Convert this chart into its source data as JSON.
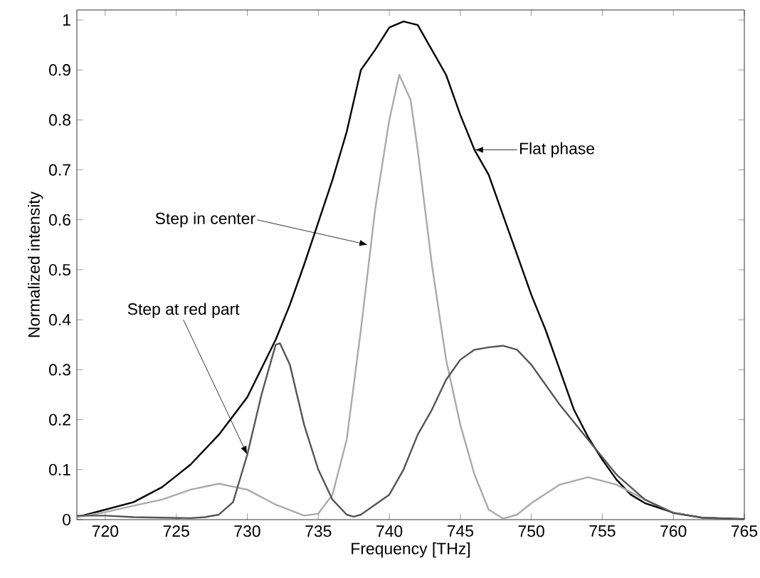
{
  "chart_data": {
    "type": "line",
    "xlabel": "Frequency [THz]",
    "ylabel": "Normalized intensity",
    "xlim": [
      718,
      765
    ],
    "ylim": [
      0,
      1.02
    ],
    "xticks": [
      720,
      725,
      730,
      735,
      740,
      745,
      750,
      755,
      760,
      765
    ],
    "yticks": [
      0,
      0.1,
      0.2,
      0.3,
      0.4,
      0.5,
      0.6,
      0.7,
      0.8,
      0.9,
      1
    ],
    "grid": false,
    "marker": "none",
    "line_style": "solid",
    "series": [
      {
        "color": "#000000",
        "x": [
          718,
          720,
          722,
          724,
          726,
          728,
          730,
          732,
          733,
          734,
          735,
          736,
          737,
          738,
          739,
          740,
          741,
          742,
          743,
          744,
          745,
          746,
          747,
          748,
          749,
          750,
          751,
          752,
          753,
          754,
          755,
          756,
          757,
          758,
          760,
          762,
          765
        ],
        "values": [
          0.005,
          0.02,
          0.035,
          0.065,
          0.11,
          0.17,
          0.245,
          0.36,
          0.43,
          0.51,
          0.595,
          0.68,
          0.776,
          0.9,
          0.94,
          0.985,
          0.997,
          0.99,
          0.94,
          0.89,
          0.81,
          0.74,
          0.69,
          0.61,
          0.53,
          0.45,
          0.38,
          0.3,
          0.22,
          0.165,
          0.12,
          0.08,
          0.05,
          0.033,
          0.014,
          0.004,
          0.001
        ]
      },
      {
        "color": "#aaaaaa",
        "x": [
          718,
          720,
          722,
          724,
          726,
          728,
          730,
          732,
          734,
          735,
          736,
          737,
          738,
          739,
          740,
          740.7,
          741.5,
          742,
          743,
          744,
          745,
          746,
          747,
          748,
          749,
          750,
          752,
          754,
          756,
          758,
          760,
          762,
          765
        ],
        "values": [
          0.005,
          0.015,
          0.028,
          0.04,
          0.06,
          0.072,
          0.06,
          0.03,
          0.008,
          0.012,
          0.05,
          0.16,
          0.38,
          0.62,
          0.8,
          0.89,
          0.84,
          0.74,
          0.51,
          0.32,
          0.19,
          0.09,
          0.02,
          0.002,
          0.01,
          0.033,
          0.07,
          0.085,
          0.07,
          0.04,
          0.014,
          0.004,
          0
        ]
      },
      {
        "color": "#555555",
        "x": [
          718,
          720,
          722,
          724,
          726,
          727,
          728,
          729,
          730,
          731,
          732,
          732.3,
          733,
          734,
          735,
          736,
          737,
          737.5,
          738,
          739,
          740,
          741,
          742,
          743,
          744,
          745,
          746,
          747,
          748,
          749,
          750,
          752,
          754,
          756,
          758,
          760,
          762,
          765
        ],
        "values": [
          0.008,
          0.008,
          0.005,
          0.004,
          0.003,
          0.005,
          0.01,
          0.035,
          0.13,
          0.25,
          0.35,
          0.353,
          0.31,
          0.19,
          0.1,
          0.04,
          0.01,
          0.006,
          0.01,
          0.03,
          0.05,
          0.1,
          0.17,
          0.22,
          0.28,
          0.32,
          0.34,
          0.345,
          0.348,
          0.34,
          0.31,
          0.23,
          0.16,
          0.09,
          0.04,
          0.013,
          0.004,
          0
        ]
      }
    ],
    "annotations": [
      {
        "text": "Flat phase",
        "x": 746,
        "y": 0.74
      },
      {
        "text": "Step in center",
        "x": 738.5,
        "y": 0.55
      },
      {
        "text": "Step at red part",
        "x": 730,
        "y": 0.13
      }
    ]
  }
}
